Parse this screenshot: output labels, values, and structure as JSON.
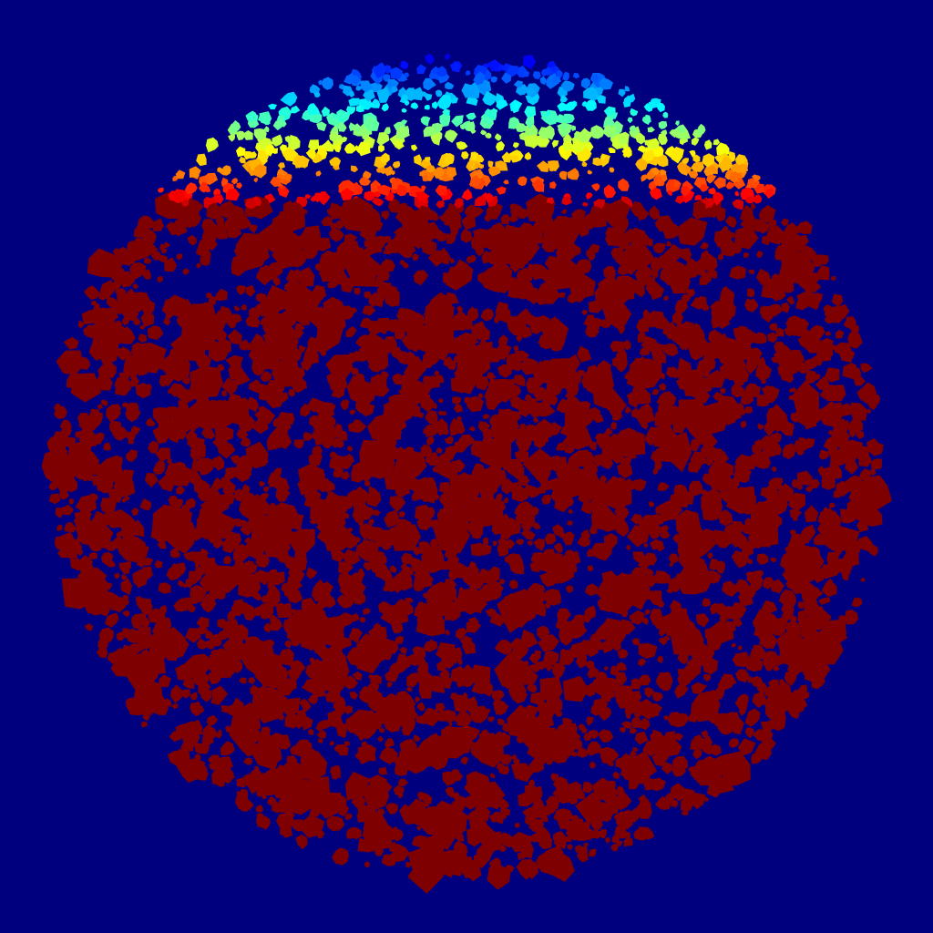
{
  "image": {
    "description_colors": {
      "background": "#00007f",
      "dominant_particles": "#7f0000",
      "colormap": "jet"
    },
    "colormap_stops": [
      "#00008f",
      "#0000ff",
      "#0080ff",
      "#00ffff",
      "#80ff80",
      "#ffff00",
      "#ff8000",
      "#ff0000",
      "#800000"
    ]
  }
}
